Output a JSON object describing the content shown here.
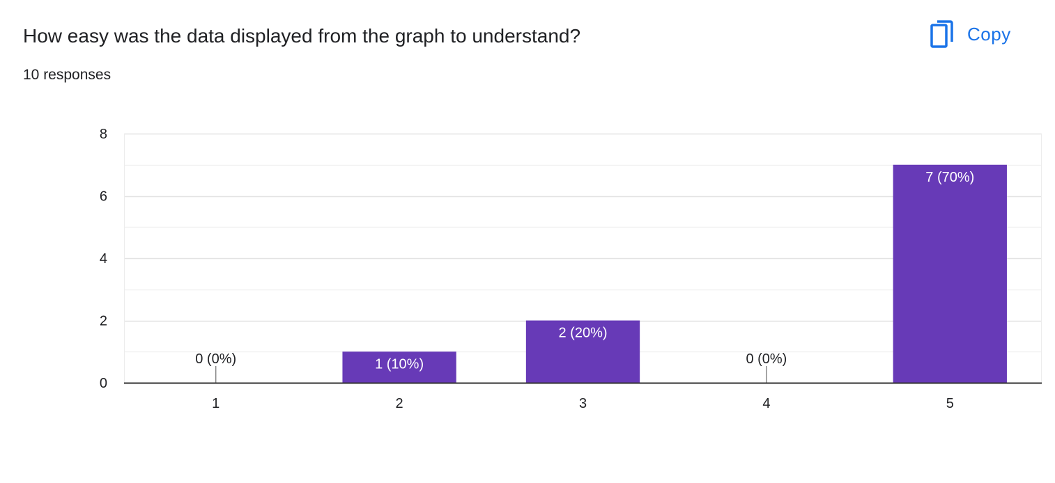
{
  "question": {
    "title": "How easy was the data displayed from the graph to understand?",
    "responses": "10 responses"
  },
  "toolbar": {
    "copy_label": "Copy",
    "copy_icon": "copy-icon"
  },
  "colors": {
    "bar": "#673ab7",
    "accent": "#1a73e8",
    "gridline": "#e8e8e8",
    "axis": "#333333",
    "text": "#202124",
    "label_inside": "#ffffff"
  },
  "chart_data": {
    "type": "bar",
    "categories": [
      "1",
      "2",
      "3",
      "4",
      "5"
    ],
    "values": [
      0,
      1,
      2,
      0,
      7
    ],
    "data_labels": [
      "0 (0%)",
      "1 (10%)",
      "2 (20%)",
      "0 (0%)",
      "7 (70%)"
    ],
    "ylim": [
      0,
      8
    ],
    "yticks": [
      0,
      2,
      4,
      6,
      8
    ],
    "grid": true,
    "legend": "none",
    "title": "",
    "xlabel": "",
    "ylabel": ""
  }
}
